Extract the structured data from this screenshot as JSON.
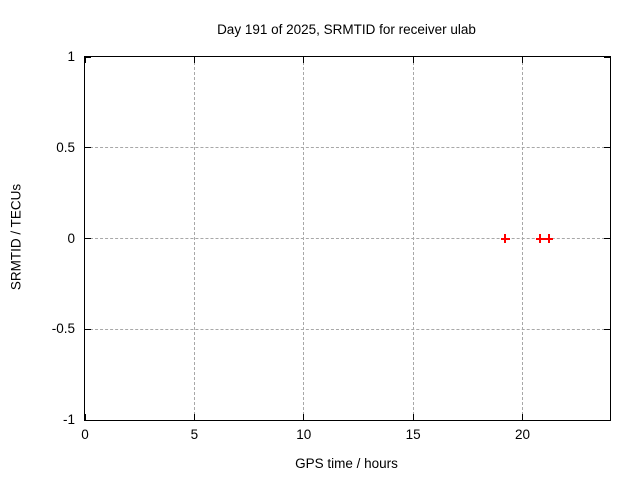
{
  "chart_data": {
    "type": "scatter",
    "title": "Day 191 of 2025, SRMTID for receiver ulab",
    "xlabel": "GPS time / hours",
    "ylabel": "SRMTID / TECUs",
    "xlim": [
      0,
      24
    ],
    "ylim": [
      -1,
      1
    ],
    "grid": true,
    "legend": "none",
    "xticks": [
      {
        "value": 0,
        "label": "0"
      },
      {
        "value": 5,
        "label": "5"
      },
      {
        "value": 10,
        "label": "10"
      },
      {
        "value": 15,
        "label": "15"
      },
      {
        "value": 20,
        "label": "20"
      }
    ],
    "yticks": [
      {
        "value": -1,
        "label": "-1"
      },
      {
        "value": -0.5,
        "label": "-0.5"
      },
      {
        "value": 0,
        "label": "0"
      },
      {
        "value": 0.5,
        "label": "0.5"
      },
      {
        "value": 1,
        "label": "1"
      }
    ],
    "series": [
      {
        "name": "SRMTID",
        "marker": "plus",
        "color": "#ff0000",
        "points": [
          {
            "x": 19.2,
            "y": 0.0
          },
          {
            "x": 20.8,
            "y": 0.0
          },
          {
            "x": 21.2,
            "y": 0.0
          }
        ]
      }
    ]
  },
  "colors": {
    "background": "#ffffff",
    "border": "#000000",
    "grid": "#a8a8a8",
    "text": "#000000",
    "series1": "#ff0000"
  }
}
